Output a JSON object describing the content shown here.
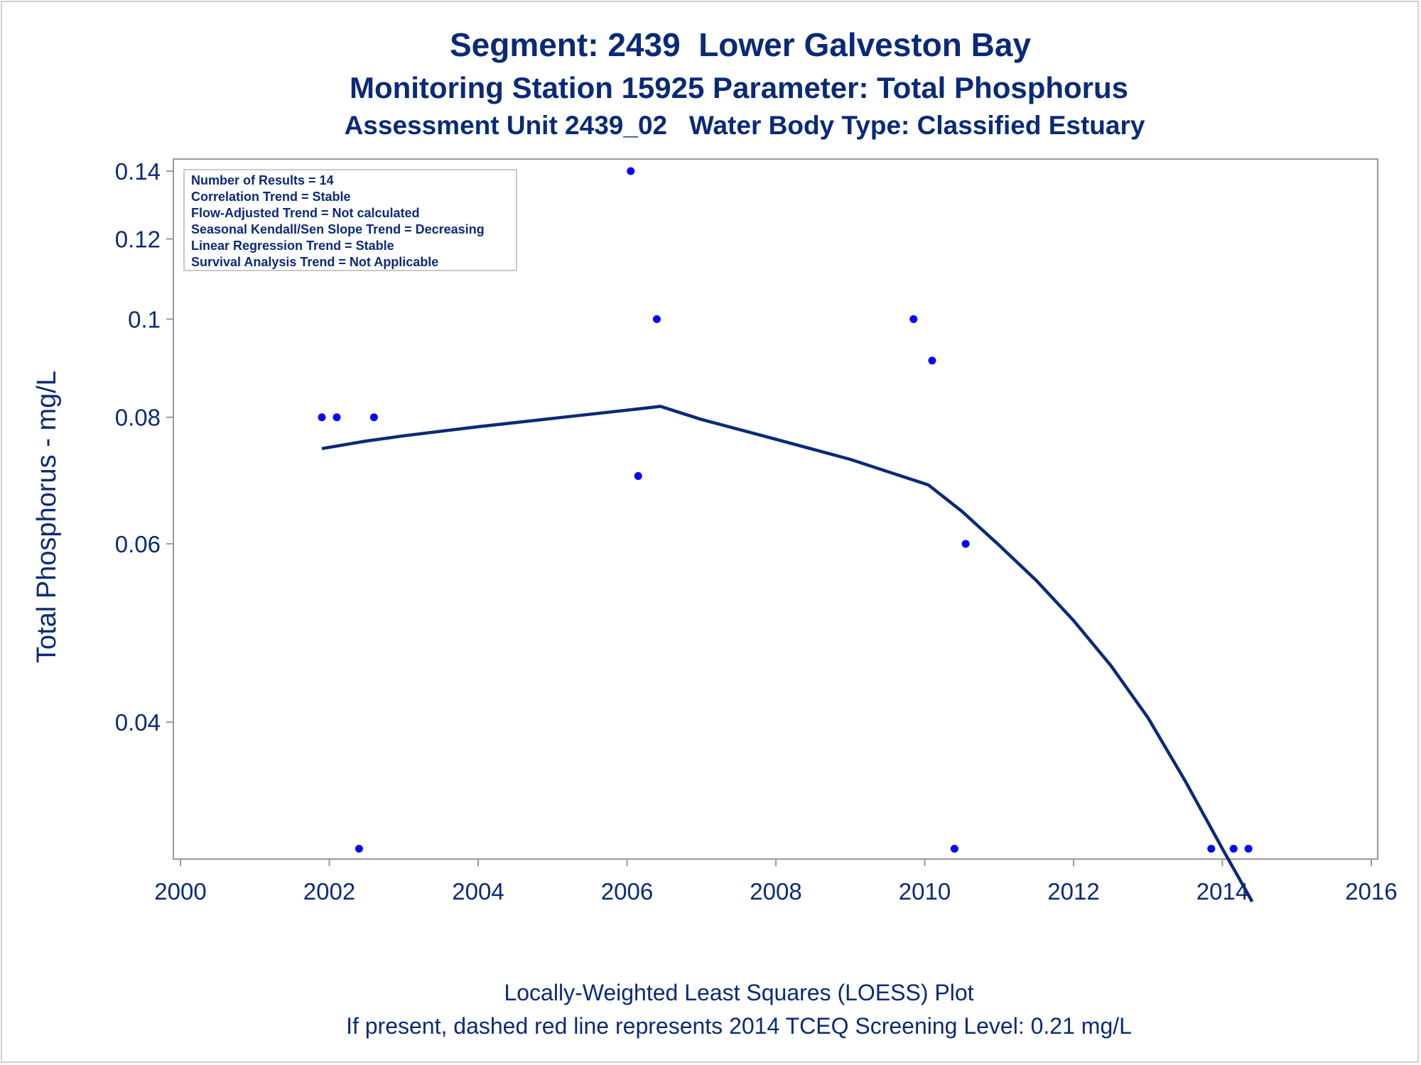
{
  "titles": {
    "line1": "Segment: 2439  Lower Galveston Bay",
    "line2": "Monitoring Station 15925 Parameter: Total Phosphorus",
    "line3": "Assessment Unit 2439_02   Water Body Type: Classified Estuary"
  },
  "footnotes": {
    "line1": "Locally-Weighted Least Squares (LOESS) Plot",
    "line2": "If present, dashed red line represents 2014 TCEQ Screening Level: 0.21 mg/L"
  },
  "annotations": [
    "Number of Results = 14",
    "Correlation Trend = Stable",
    "Flow-Adjusted Trend = Not calculated",
    "Seasonal Kendall/Sen Slope Trend = Decreasing",
    "Linear Regression Trend = Stable",
    "Survival Analysis Trend = Not Applicable"
  ],
  "colors": {
    "text": "#0a2a78",
    "points": "#0000ff",
    "loess": "#0a2a78",
    "axis": "#999999"
  },
  "chart_data": {
    "type": "scatter",
    "xlabel": "",
    "ylabel": "Total Phosphorus - mg/L",
    "xlim": [
      2000,
      2016
    ],
    "ylim": [
      0.0293,
      0.14
    ],
    "y_scale": "log",
    "grid": false,
    "x_ticks": [
      2000,
      2002,
      2004,
      2006,
      2008,
      2010,
      2012,
      2014,
      2016
    ],
    "y_ticks": [
      0.04,
      0.06,
      0.08,
      0.1,
      0.12,
      0.14
    ],
    "y_tick_labels": [
      "0.04",
      "0.06",
      "0.08",
      "0.1",
      "0.12",
      "0.14"
    ],
    "series": [
      {
        "type": "scatter",
        "points": [
          {
            "x": 2001.9,
            "y": 0.08
          },
          {
            "x": 2002.1,
            "y": 0.08
          },
          {
            "x": 2002.4,
            "y": 0.03
          },
          {
            "x": 2002.6,
            "y": 0.08
          },
          {
            "x": 2006.05,
            "y": 0.14
          },
          {
            "x": 2006.15,
            "y": 0.07
          },
          {
            "x": 2006.4,
            "y": 0.1
          },
          {
            "x": 2009.85,
            "y": 0.1
          },
          {
            "x": 2010.1,
            "y": 0.091
          },
          {
            "x": 2010.4,
            "y": 0.03
          },
          {
            "x": 2010.55,
            "y": 0.06
          },
          {
            "x": 2013.85,
            "y": 0.03
          },
          {
            "x": 2014.15,
            "y": 0.03
          },
          {
            "x": 2014.35,
            "y": 0.03
          }
        ]
      },
      {
        "type": "line",
        "points": [
          {
            "x": 2001.9,
            "y": 0.0745
          },
          {
            "x": 2002.5,
            "y": 0.0758
          },
          {
            "x": 2003.0,
            "y": 0.0767
          },
          {
            "x": 2004.0,
            "y": 0.0783
          },
          {
            "x": 2005.0,
            "y": 0.0798
          },
          {
            "x": 2006.0,
            "y": 0.0813
          },
          {
            "x": 2006.45,
            "y": 0.082
          },
          {
            "x": 2007.0,
            "y": 0.0796
          },
          {
            "x": 2008.0,
            "y": 0.0761
          },
          {
            "x": 2009.0,
            "y": 0.0727
          },
          {
            "x": 2010.05,
            "y": 0.0686
          },
          {
            "x": 2010.5,
            "y": 0.0646
          },
          {
            "x": 2011.0,
            "y": 0.0598
          },
          {
            "x": 2011.5,
            "y": 0.0552
          },
          {
            "x": 2012.0,
            "y": 0.0504
          },
          {
            "x": 2012.5,
            "y": 0.0455
          },
          {
            "x": 2013.0,
            "y": 0.0404
          },
          {
            "x": 2013.5,
            "y": 0.035
          },
          {
            "x": 2014.0,
            "y": 0.03
          },
          {
            "x": 2014.4,
            "y": 0.0266
          }
        ]
      }
    ]
  }
}
